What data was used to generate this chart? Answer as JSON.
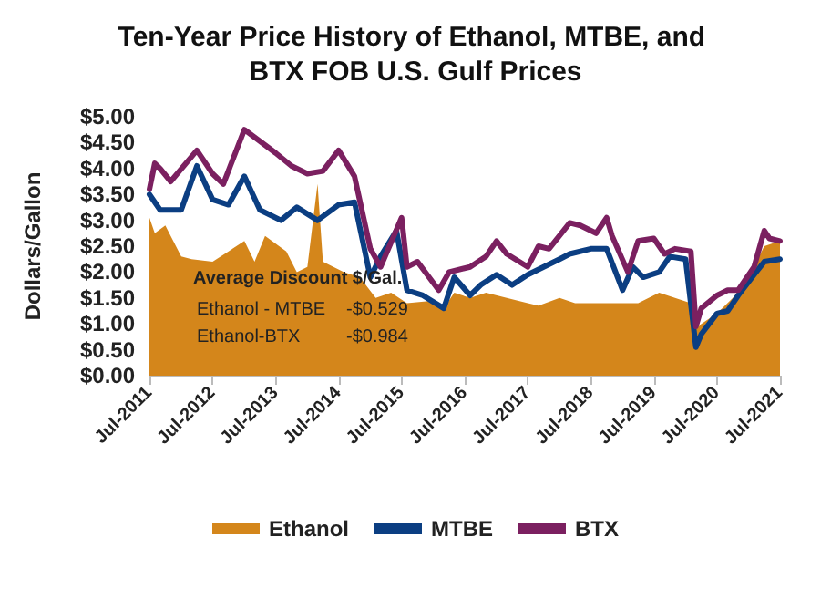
{
  "chart_data": {
    "type": "line",
    "title": "Ten-Year Price History of Ethanol, MTBE, and BTX FOB U.S. Gulf Prices",
    "ylabel": "Dollars/Gallon",
    "xlim": [
      "2011-07",
      "2021-07"
    ],
    "xticks": [
      {
        "value": "2011-07",
        "label": "Jul-2011"
      },
      {
        "value": "2012-07",
        "label": "Jul-2012"
      },
      {
        "value": "2013-07",
        "label": "Jul-2013"
      },
      {
        "value": "2014-07",
        "label": "Jul-2014"
      },
      {
        "value": "2015-07",
        "label": "Jul-2015"
      },
      {
        "value": "2016-07",
        "label": "Jul-2016"
      },
      {
        "value": "2017-07",
        "label": "Jul-2017"
      },
      {
        "value": "2018-07",
        "label": "Jul-2018"
      },
      {
        "value": "2019-07",
        "label": "Jul-2019"
      },
      {
        "value": "2020-07",
        "label": "Jul-2020"
      },
      {
        "value": "2021-07",
        "label": "Jul-2021"
      }
    ],
    "ylim": [
      0,
      5
    ],
    "yticks": [
      {
        "value": 0,
        "label": "$0.00"
      },
      {
        "value": 0.5,
        "label": "$0.50"
      },
      {
        "value": 1,
        "label": "$1.00"
      },
      {
        "value": 1.5,
        "label": "$1.50"
      },
      {
        "value": 2,
        "label": "$2.00"
      },
      {
        "value": 2.5,
        "label": "$2.50"
      },
      {
        "value": 3,
        "label": "$3.00"
      },
      {
        "value": 3.5,
        "label": "$3.50"
      },
      {
        "value": 4,
        "label": "$4.00"
      },
      {
        "value": 4.5,
        "label": "$4.50"
      },
      {
        "value": 5,
        "label": "$5.00"
      }
    ],
    "grid": false,
    "legend": "bottom",
    "marker": "none",
    "annotations": [
      "Average Discount $/Gal.",
      "Ethanol - MTBE",
      "-$0.529",
      "Ethanol-BTX",
      "-$0.984"
    ],
    "series": [
      {
        "name": "Ethanol",
        "type": "area",
        "color": "#d4861b",
        "x": [
          "2011-07",
          "2011-08",
          "2011-10",
          "2012-01",
          "2012-03",
          "2012-07",
          "2012-10",
          "2013-01",
          "2013-03",
          "2013-05",
          "2013-09",
          "2013-11",
          "2014-01",
          "2014-03",
          "2014-04",
          "2014-08",
          "2014-11",
          "2015-02",
          "2015-05",
          "2015-08",
          "2016-01",
          "2016-03",
          "2016-05",
          "2016-08",
          "2016-11",
          "2017-03",
          "2017-07",
          "2017-09",
          "2018-01",
          "2018-04",
          "2018-09",
          "2019-01",
          "2019-04",
          "2019-08",
          "2019-11",
          "2020-02",
          "2020-03",
          "2020-04",
          "2020-07",
          "2020-10",
          "2021-01",
          "2021-04",
          "2021-07"
        ],
        "values": [
          3.05,
          2.75,
          2.9,
          2.3,
          2.25,
          2.2,
          2.4,
          2.6,
          2.2,
          2.7,
          2.4,
          2.0,
          2.1,
          3.7,
          2.2,
          2.0,
          1.9,
          1.5,
          1.6,
          1.4,
          1.45,
          1.3,
          1.6,
          1.5,
          1.6,
          1.5,
          1.4,
          1.35,
          1.5,
          1.4,
          1.4,
          1.4,
          1.4,
          1.6,
          1.5,
          1.4,
          0.9,
          1.0,
          1.2,
          1.5,
          1.9,
          2.5,
          2.6
        ]
      },
      {
        "name": "MTBE",
        "color": "#0b3e82",
        "x": [
          "2011-07",
          "2011-09",
          "2012-01",
          "2012-04",
          "2012-07",
          "2012-10",
          "2013-01",
          "2013-04",
          "2013-08",
          "2013-11",
          "2014-03",
          "2014-07",
          "2014-10",
          "2015-01",
          "2015-03",
          "2015-06",
          "2015-08",
          "2015-11",
          "2016-03",
          "2016-05",
          "2016-08",
          "2016-10",
          "2017-01",
          "2017-04",
          "2017-07",
          "2017-10",
          "2018-01",
          "2018-03",
          "2018-07",
          "2018-10",
          "2019-01",
          "2019-03",
          "2019-05",
          "2019-08",
          "2019-10",
          "2020-01",
          "2020-03",
          "2020-04",
          "2020-07",
          "2020-09",
          "2020-11",
          "2021-02",
          "2021-04",
          "2021-07"
        ],
        "values": [
          3.5,
          3.2,
          3.2,
          4.05,
          3.4,
          3.3,
          3.85,
          3.2,
          3.0,
          3.25,
          3.0,
          3.3,
          3.35,
          1.9,
          2.3,
          2.8,
          1.65,
          1.55,
          1.3,
          1.9,
          1.55,
          1.75,
          1.95,
          1.75,
          1.95,
          2.1,
          2.25,
          2.35,
          2.45,
          2.45,
          1.65,
          2.1,
          1.9,
          2.0,
          2.3,
          2.25,
          0.55,
          0.8,
          1.2,
          1.25,
          1.55,
          1.95,
          2.2,
          2.25
        ]
      },
      {
        "name": "BTX",
        "color": "#7b2060",
        "x": [
          "2011-07",
          "2011-08",
          "2011-09",
          "2011-11",
          "2012-04",
          "2012-07",
          "2012-09",
          "2013-01",
          "2013-07",
          "2013-10",
          "2014-01",
          "2014-04",
          "2014-07",
          "2014-10",
          "2015-01",
          "2015-03",
          "2015-07",
          "2015-08",
          "2015-10",
          "2016-02",
          "2016-04",
          "2016-08",
          "2016-11",
          "2017-01",
          "2017-03",
          "2017-07",
          "2017-09",
          "2017-11",
          "2018-03",
          "2018-05",
          "2018-08",
          "2018-10",
          "2018-11",
          "2019-02",
          "2019-04",
          "2019-07",
          "2019-09",
          "2019-11",
          "2020-02",
          "2020-03",
          "2020-04",
          "2020-07",
          "2020-09",
          "2020-11",
          "2021-02",
          "2021-04",
          "2021-05",
          "2021-07"
        ],
        "values": [
          3.6,
          4.1,
          4.0,
          3.75,
          4.35,
          3.9,
          3.7,
          4.75,
          4.3,
          4.05,
          3.9,
          3.95,
          4.35,
          3.85,
          2.45,
          2.1,
          3.05,
          2.1,
          2.2,
          1.65,
          2.0,
          2.1,
          2.3,
          2.6,
          2.35,
          2.1,
          2.5,
          2.45,
          2.95,
          2.9,
          2.75,
          3.05,
          2.7,
          2.0,
          2.6,
          2.65,
          2.35,
          2.45,
          2.4,
          0.95,
          1.3,
          1.55,
          1.65,
          1.65,
          2.1,
          2.8,
          2.65,
          2.6
        ]
      }
    ]
  }
}
